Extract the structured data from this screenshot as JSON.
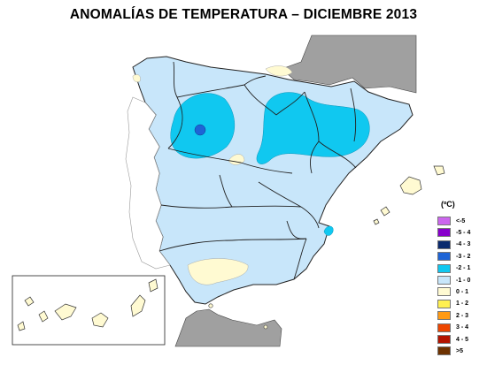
{
  "title": "ANOMALÍAS DE TEMPERATURA – DICIEMBRE 2013",
  "legend": {
    "unit": "(ºC)",
    "items": [
      {
        "label": "<-5",
        "color": "#cc66ee"
      },
      {
        "label": "-5 - 4",
        "color": "#8800cc"
      },
      {
        "label": "-4 - 3",
        "color": "#0a2a6e"
      },
      {
        "label": "-3 - 2",
        "color": "#1e64d6"
      },
      {
        "label": "-2 - 1",
        "color": "#10c8f0"
      },
      {
        "label": "-1 - 0",
        "color": "#c8e6fa"
      },
      {
        "label": "0 - 1",
        "color": "#fffad2"
      },
      {
        "label": "1 - 2",
        "color": "#fff050"
      },
      {
        "label": "2 - 3",
        "color": "#ff9a14"
      },
      {
        "label": "3 - 4",
        "color": "#ee4600"
      },
      {
        "label": "4 - 5",
        "color": "#b41400"
      },
      {
        "label": ">5",
        "color": "#6e3200"
      }
    ]
  },
  "colors": {
    "sea": "#ffffff",
    "neighbor_land": "#a0a0a0",
    "border": "#222222"
  }
}
